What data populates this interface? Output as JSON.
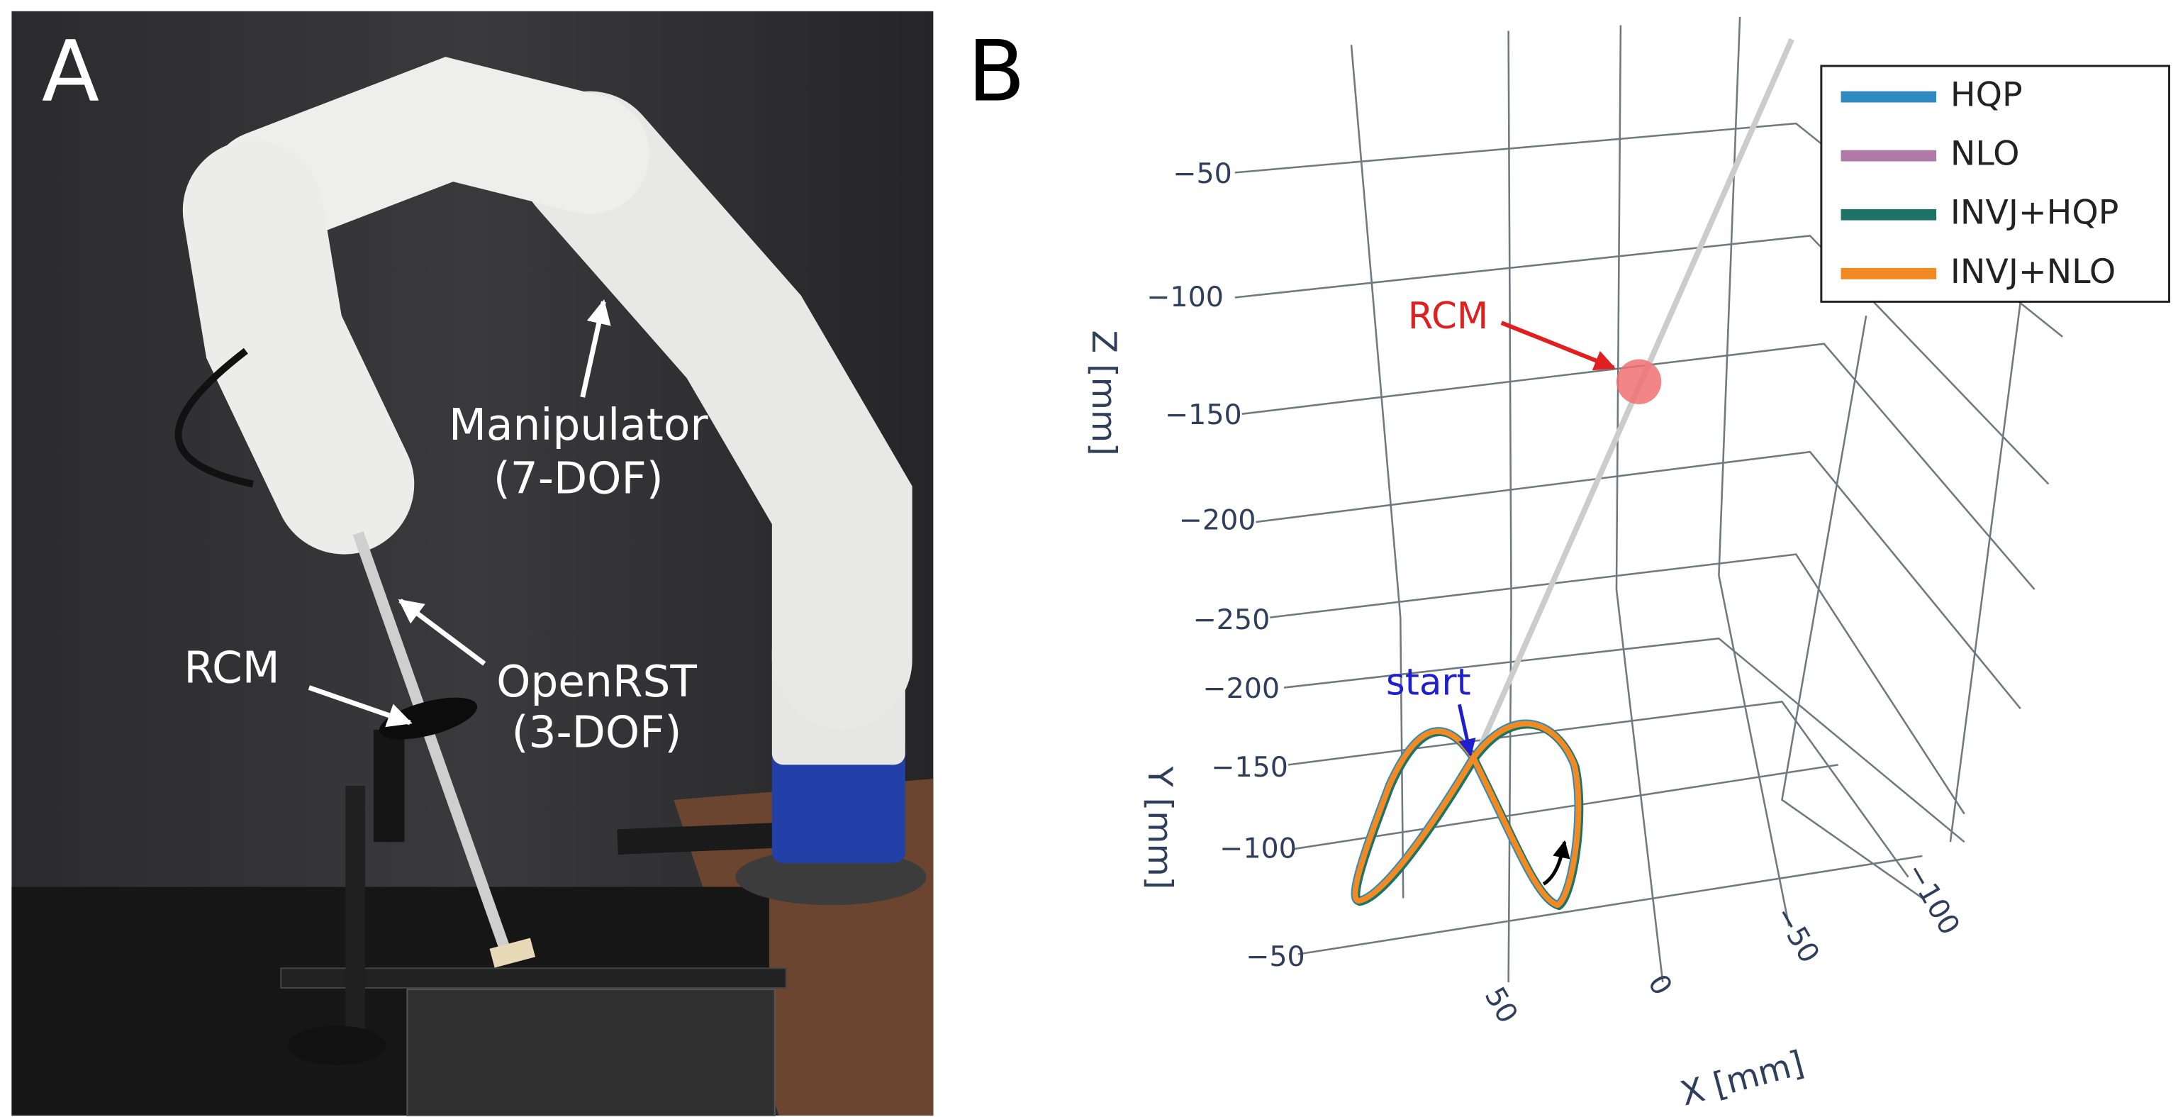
{
  "panel_a": {
    "label": "A",
    "manipulator": "Manipulator",
    "manipulator_dof": "(7-DOF)",
    "rcm": "RCM",
    "openrst": "OpenRST",
    "openrst_dof": "(3-DOF)"
  },
  "panel_b": {
    "label": "B",
    "legend": [
      {
        "name": "HQP",
        "color": "#2f8ac0"
      },
      {
        "name": "NLO",
        "color": "#b079a6"
      },
      {
        "name": "INVJ+HQP",
        "color": "#1d7466"
      },
      {
        "name": "INVJ+NLO",
        "color": "#f28a24"
      }
    ],
    "z_axis": {
      "title": "Z [mm]",
      "ticks": [
        "−50",
        "−100",
        "−150",
        "−200",
        "−250"
      ]
    },
    "y_axis": {
      "title": "Y [mm]",
      "ticks": [
        "−200",
        "−150",
        "−100",
        "−50"
      ]
    },
    "x_axis": {
      "title": "X [mm]",
      "ticks": [
        "50",
        "0",
        "−50",
        "−100"
      ]
    },
    "rcm_annotation": "RCM",
    "start_annotation": "start"
  }
}
